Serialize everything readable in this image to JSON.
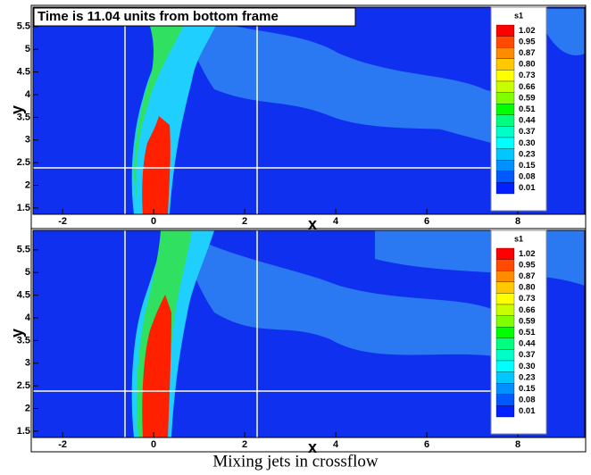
{
  "chart_data": [
    {
      "type": "contour",
      "title": "Time is 11.04 units from bottom frame",
      "xlabel": "x",
      "ylabel": "y",
      "xlim": [
        -2.65,
        9.47
      ],
      "ylim": [
        1.36,
        5.93
      ],
      "xticks": [
        -2,
        0,
        2,
        4,
        6,
        8
      ],
      "yticks": [
        1.5,
        2,
        2.5,
        3,
        3.5,
        4,
        4.5,
        5,
        5.5
      ],
      "colorbar": {
        "title": "s1",
        "levels": [
          1.02,
          0.95,
          0.87,
          {
            "value": 0.8,
            "label": "0.80"
          },
          0.73,
          0.66,
          0.59,
          0.51,
          0.44,
          0.37,
          {
            "value": 0.3,
            "label": "0.30"
          },
          0.23,
          0.15,
          0.08,
          0.01
        ],
        "colors": [
          "#ff0000",
          "#ff4a00",
          "#ff8c00",
          "#ffc800",
          "#ffff00",
          "#c8ff00",
          "#80ff00",
          "#00ff00",
          "#00ff80",
          "#00ffc8",
          "#00ffff",
          "#00c8ff",
          "#0090ff",
          "#0058ff",
          "#0020ff"
        ]
      }
    },
    {
      "type": "contour",
      "xlabel": "x",
      "ylabel": "y",
      "xlim": [
        -2.65,
        9.47
      ],
      "ylim": [
        1.36,
        5.93
      ],
      "xticks": [
        -2,
        0,
        2,
        4,
        6,
        8
      ],
      "yticks": [
        1.5,
        2,
        2.5,
        3,
        3.5,
        4,
        4.5,
        5,
        5.5
      ],
      "colorbar": {
        "title": "s1",
        "levels": [
          1.02,
          0.95,
          0.87,
          {
            "value": 0.8,
            "label": "0.80"
          },
          0.73,
          0.66,
          0.59,
          0.51,
          0.44,
          0.37,
          {
            "value": 0.3,
            "label": "0.30"
          },
          0.23,
          0.15,
          0.08,
          0.01
        ],
        "colors": [
          "#ff0000",
          "#ff4a00",
          "#ff8c00",
          "#ffc800",
          "#ffff00",
          "#c8ff00",
          "#80ff00",
          "#00ff00",
          "#00ff80",
          "#00ffc8",
          "#00ffff",
          "#00c8ff",
          "#0090ff",
          "#0058ff",
          "#0020ff"
        ]
      }
    }
  ],
  "caption": "Mixing jets in crossflow"
}
